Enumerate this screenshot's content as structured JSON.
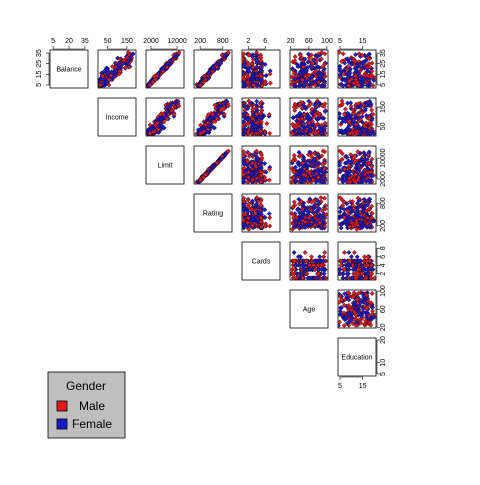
{
  "chart_data": {
    "type": "scatter",
    "subtype": "scatterplot-matrix-upper-triangle",
    "variables": [
      "Balance",
      "Income",
      "Limit",
      "Rating",
      "Cards",
      "Age",
      "Education"
    ],
    "top_axis_ticks": {
      "Balance": [
        "5",
        "20",
        "35"
      ],
      "Income": [
        "50",
        "150"
      ],
      "Limit": [
        "2000",
        "12000"
      ],
      "Rating": [
        "200",
        "800"
      ],
      "Cards": [
        "2",
        "6"
      ],
      "Age": [
        "20",
        "60",
        "100"
      ],
      "Education": [
        "5",
        "15"
      ]
    },
    "right_axis_ticks": {
      "Balance": [
        "35",
        "25",
        "15",
        "5"
      ],
      "Income": [
        "150",
        "50"
      ],
      "Limit": [
        "10000",
        "2000"
      ],
      "Rating": [
        "800",
        "200"
      ],
      "Cards": [
        "8",
        "6",
        "4",
        "2"
      ],
      "Age": [
        "100",
        "60",
        "20"
      ],
      "Education": [
        "20",
        "10",
        "5"
      ]
    },
    "left_axis_ticks": {
      "Balance": [
        "35",
        "25",
        "15",
        "5"
      ]
    },
    "bottom_axis_ticks": {
      "Education": [
        "5",
        "15"
      ]
    },
    "ranges": {
      "Balance": [
        4,
        36
      ],
      "Income": [
        10,
        187
      ],
      "Limit": [
        850,
        13900
      ],
      "Rating": [
        90,
        990
      ],
      "Cards": [
        1,
        9
      ],
      "Age": [
        23,
        98
      ],
      "Education": [
        5,
        20
      ]
    },
    "legend": {
      "title": "Gender",
      "position": "bottom-left",
      "entries": [
        {
          "label": "Male",
          "color": "#e31a1c"
        },
        {
          "label": "Female",
          "color": "#1a1acd"
        }
      ]
    },
    "series": [
      {
        "name": "Male",
        "color": "#e31a1c"
      },
      {
        "name": "Female",
        "color": "#1a1acd"
      }
    ],
    "marker": "diamond",
    "grid": false
  }
}
